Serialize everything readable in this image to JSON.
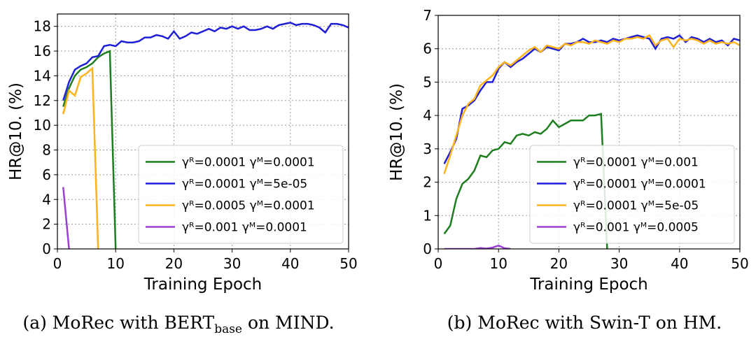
{
  "chart_data": [
    {
      "type": "line",
      "xlabel": "Training Epoch",
      "ylabel": "HR@10. (%)",
      "caption": {
        "prefix": "(a)  MoRec with BERT",
        "subscript": "base",
        "suffix": "on MIND."
      },
      "xlim": [
        0,
        50
      ],
      "ylim": [
        0,
        19
      ],
      "xticks": [
        0,
        10,
        20,
        30,
        40,
        50
      ],
      "yticks": [
        0,
        2,
        4,
        6,
        8,
        10,
        12,
        14,
        16,
        18
      ],
      "grid": true,
      "legend": "lower right",
      "x": [
        1,
        2,
        3,
        4,
        5,
        6,
        7,
        8,
        9,
        10,
        11,
        12,
        13,
        14,
        15,
        16,
        17,
        18,
        19,
        20,
        21,
        22,
        23,
        24,
        25,
        26,
        27,
        28,
        29,
        30,
        31,
        32,
        33,
        34,
        35,
        36,
        37,
        38,
        39,
        40,
        41,
        42,
        43,
        44,
        45,
        46,
        47,
        48,
        49,
        50
      ],
      "series": [
        {
          "name": "γᴿ=0.0001 γᴹ=0.0001",
          "color": "#1e7d1e",
          "values": [
            11.5,
            13.0,
            14.0,
            14.5,
            14.7,
            15.0,
            15.5,
            15.8,
            16.0,
            0,
            null,
            null,
            null,
            null,
            null,
            null,
            null,
            null,
            null,
            null,
            null,
            null,
            null,
            null,
            null,
            null,
            null,
            null,
            null,
            null,
            null,
            null,
            null,
            null,
            null,
            null,
            null,
            null,
            null,
            null,
            null,
            null,
            null,
            null,
            null,
            null,
            null,
            null,
            null,
            null
          ]
        },
        {
          "name": "γᴿ=0.0001 γᴹ=5e-05",
          "color": "#1f1fd6",
          "values": [
            12.0,
            13.5,
            14.5,
            14.8,
            15.0,
            15.5,
            15.6,
            16.4,
            16.5,
            16.4,
            16.8,
            16.7,
            16.7,
            16.8,
            17.1,
            17.1,
            17.3,
            17.2,
            17.0,
            17.6,
            17.0,
            17.2,
            17.5,
            17.4,
            17.6,
            17.8,
            17.6,
            17.9,
            17.8,
            18.0,
            17.8,
            18.0,
            17.7,
            17.7,
            17.8,
            18.0,
            17.8,
            18.1,
            18.2,
            18.3,
            18.1,
            18.2,
            18.2,
            18.1,
            17.9,
            17.5,
            18.2,
            18.2,
            18.1,
            17.9
          ]
        },
        {
          "name": "γᴿ=0.0005 γᴹ=0.0001",
          "color": "#ffb31a",
          "values": [
            10.9,
            12.8,
            12.4,
            13.9,
            14.2,
            14.6,
            0,
            null,
            null,
            null,
            null,
            null,
            null,
            null,
            null,
            null,
            null,
            null,
            null,
            null,
            null,
            null,
            null,
            null,
            null,
            null,
            null,
            null,
            null,
            null,
            null,
            null,
            null,
            null,
            null,
            null,
            null,
            null,
            null,
            null,
            null,
            null,
            null,
            null,
            null,
            null,
            null,
            null,
            null,
            null
          ]
        },
        {
          "name": "γᴿ=0.001 γᴹ=0.0001",
          "color": "#9b3fd6",
          "values": [
            5.0,
            0,
            null,
            null,
            null,
            null,
            null,
            null,
            null,
            null,
            null,
            null,
            null,
            null,
            null,
            null,
            null,
            null,
            null,
            null,
            null,
            null,
            null,
            null,
            null,
            null,
            null,
            null,
            null,
            null,
            null,
            null,
            null,
            null,
            null,
            null,
            null,
            null,
            null,
            null,
            null,
            null,
            null,
            null,
            null,
            null,
            null,
            null,
            null,
            null
          ]
        }
      ]
    },
    {
      "type": "line",
      "xlabel": "Training Epoch",
      "ylabel": "HR@10. (%)",
      "caption": {
        "prefix": "(b)  MoRec with Swin-T on HM."
      },
      "xlim": [
        0,
        50
      ],
      "ylim": [
        0,
        7
      ],
      "xticks": [
        0,
        10,
        20,
        30,
        40,
        50
      ],
      "yticks": [
        0,
        1,
        2,
        3,
        4,
        5,
        6,
        7
      ],
      "grid": true,
      "legend": "lower right",
      "x": [
        1,
        2,
        3,
        4,
        5,
        6,
        7,
        8,
        9,
        10,
        11,
        12,
        13,
        14,
        15,
        16,
        17,
        18,
        19,
        20,
        21,
        22,
        23,
        24,
        25,
        26,
        27,
        28,
        29,
        30,
        31,
        32,
        33,
        34,
        35,
        36,
        37,
        38,
        39,
        40,
        41,
        42,
        43,
        44,
        45,
        46,
        47,
        48,
        49,
        50
      ],
      "series": [
        {
          "name": "γᴿ=0.0001 γᴹ=0.001",
          "color": "#1e7d1e",
          "values": [
            0.45,
            0.7,
            1.5,
            1.95,
            2.1,
            2.35,
            2.8,
            2.75,
            2.95,
            3.0,
            3.2,
            3.15,
            3.4,
            3.45,
            3.4,
            3.5,
            3.45,
            3.6,
            3.85,
            3.65,
            3.75,
            3.85,
            3.85,
            3.85,
            4.0,
            4.0,
            4.05,
            0,
            null,
            null,
            null,
            null,
            null,
            null,
            null,
            null,
            null,
            null,
            null,
            null,
            null,
            null,
            null,
            null,
            null,
            null,
            null,
            null,
            null,
            null
          ]
        },
        {
          "name": "γᴿ=0.0001 γᴹ=0.0001",
          "color": "#1f1fd6",
          "values": [
            2.55,
            2.9,
            3.3,
            4.2,
            4.3,
            4.45,
            4.75,
            5.0,
            5.0,
            5.4,
            5.6,
            5.45,
            5.6,
            5.7,
            5.85,
            6.0,
            5.9,
            6.05,
            6.0,
            5.95,
            6.15,
            6.15,
            6.2,
            6.3,
            6.2,
            6.2,
            6.25,
            6.2,
            6.3,
            6.25,
            6.3,
            6.35,
            6.4,
            6.35,
            6.3,
            6.0,
            6.3,
            6.35,
            6.3,
            6.4,
            6.2,
            6.35,
            6.3,
            6.2,
            6.3,
            6.2,
            6.25,
            6.1,
            6.3,
            6.25
          ]
        },
        {
          "name": "γᴿ=0.0001 γᴹ=5e-05",
          "color": "#ffb31a",
          "values": [
            2.25,
            2.8,
            3.4,
            4.0,
            4.35,
            4.5,
            4.9,
            5.05,
            5.2,
            5.45,
            5.6,
            5.5,
            5.65,
            5.8,
            5.95,
            6.05,
            5.9,
            6.1,
            6.05,
            6.0,
            6.15,
            6.1,
            6.2,
            6.2,
            6.15,
            6.25,
            6.2,
            6.15,
            6.25,
            6.2,
            6.3,
            6.3,
            6.35,
            6.3,
            6.4,
            6.1,
            6.25,
            6.3,
            6.05,
            6.3,
            6.25,
            6.3,
            6.25,
            6.15,
            6.25,
            6.15,
            6.2,
            6.15,
            6.2,
            6.1
          ]
        },
        {
          "name": "γᴿ=0.001 γᴹ=0.0005",
          "color": "#9b3fd6",
          "values": [
            0,
            0,
            0,
            0,
            0,
            0,
            0.03,
            0.01,
            0.04,
            0.1,
            0.02,
            0,
            null,
            null,
            null,
            null,
            null,
            null,
            null,
            null,
            null,
            null,
            null,
            null,
            null,
            null,
            null,
            null,
            null,
            null,
            null,
            null,
            null,
            null,
            null,
            null,
            null,
            null,
            null,
            null,
            null,
            null,
            null,
            null,
            null,
            null,
            null,
            null,
            null,
            null
          ]
        }
      ]
    }
  ]
}
